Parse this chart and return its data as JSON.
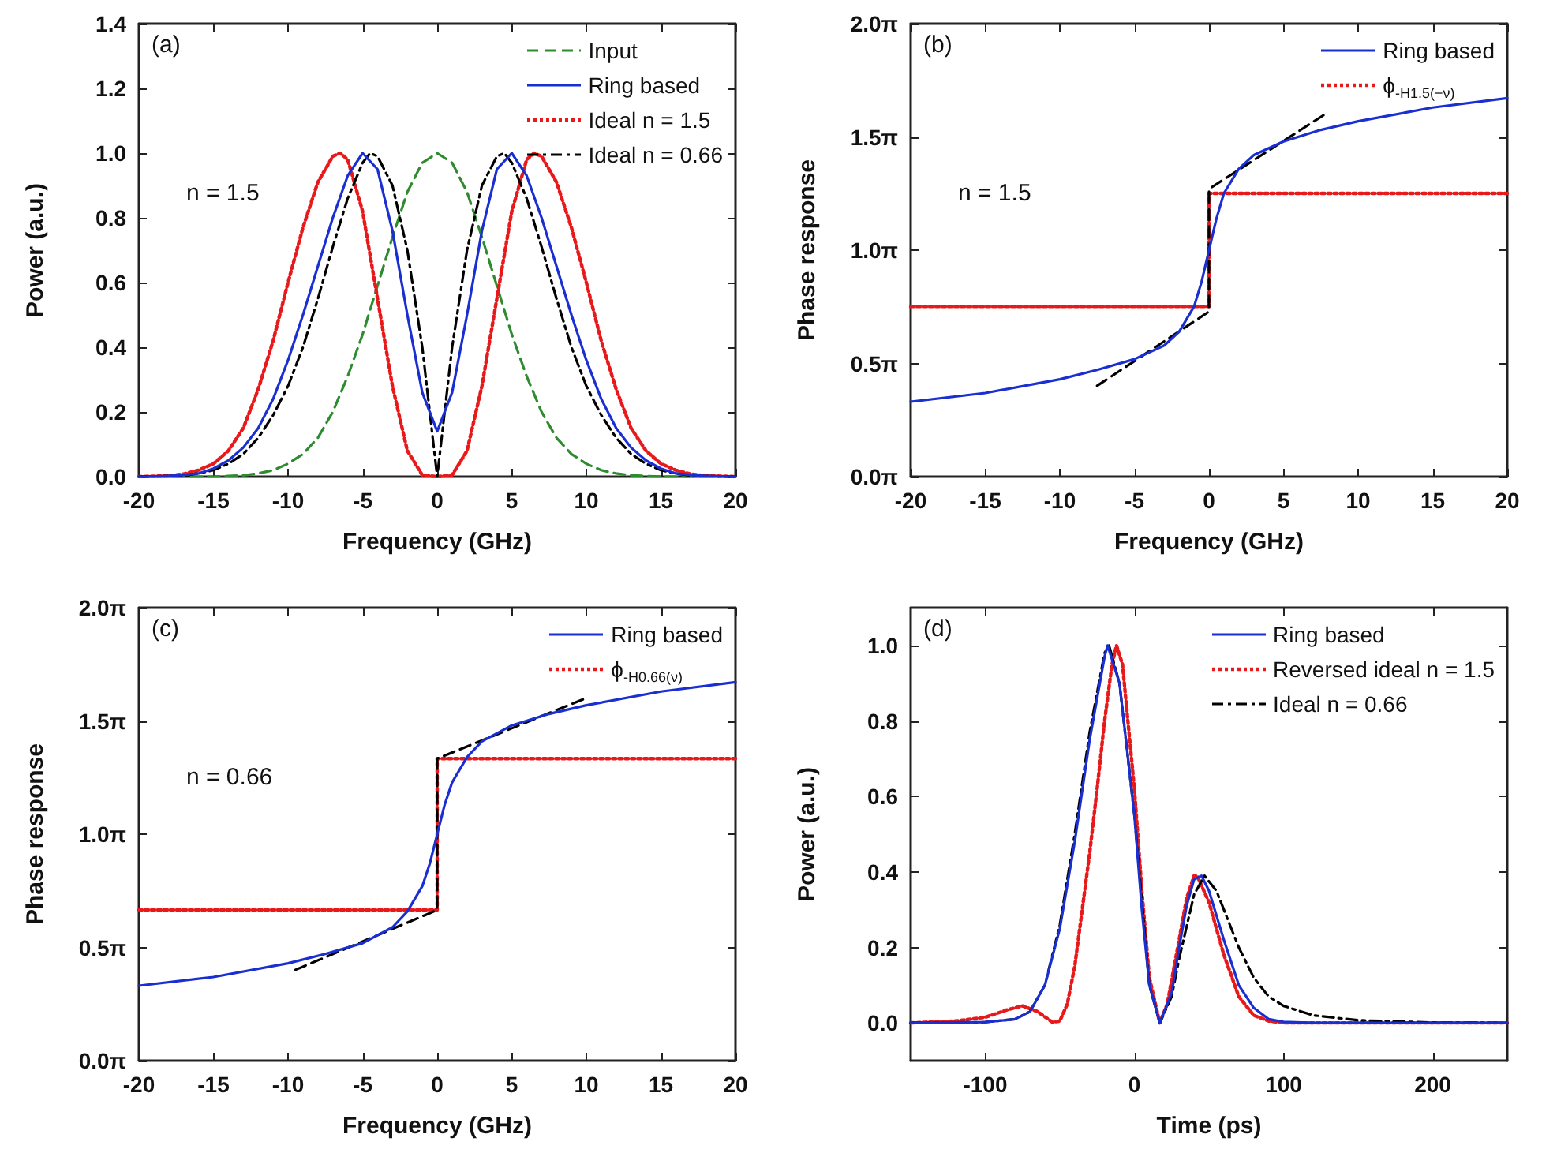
{
  "chart_data": [
    {
      "type": "line",
      "xlabel": "Frequency (GHz)",
      "ylabel": "Power (a.u.)",
      "annotations": [
        "(a)",
        "n = 1.5"
      ],
      "legend": "top right",
      "marker": "none",
      "xlim": [
        -20,
        20
      ],
      "xticks": [
        -20,
        -15,
        -10,
        -5,
        0,
        5,
        10,
        15,
        20
      ],
      "ylim": [
        0,
        1.4
      ],
      "yticks": [
        {
          "value": 0,
          "label": "0.0"
        },
        0.2,
        0.4,
        0.6,
        0.8,
        {
          "value": 1,
          "label": "1.0"
        },
        1.2,
        1.4
      ],
      "series": [
        {
          "name": "Input",
          "color": "#2e8b2e",
          "line_style": "dashed",
          "x": [
            -20,
            -15,
            -14,
            -13,
            -12,
            -11,
            -10,
            -9,
            -8,
            -7,
            -6,
            -5,
            -4,
            -3,
            -2,
            -1,
            0,
            1,
            2,
            3,
            4,
            5,
            6,
            7,
            8,
            9,
            10,
            11,
            12,
            13,
            14,
            15,
            20
          ],
          "values": [
            0,
            0,
            0.002,
            0.004,
            0.01,
            0.02,
            0.04,
            0.07,
            0.12,
            0.2,
            0.31,
            0.44,
            0.59,
            0.74,
            0.88,
            0.97,
            1,
            0.97,
            0.88,
            0.74,
            0.59,
            0.44,
            0.31,
            0.2,
            0.12,
            0.07,
            0.04,
            0.02,
            0.01,
            0.004,
            0.002,
            0,
            0
          ]
        },
        {
          "name": "Ring based",
          "color": "#1a2fd1",
          "line_style": "solid",
          "x": [
            -20,
            -18,
            -17,
            -16,
            -15,
            -14,
            -13,
            -12,
            -11,
            -10,
            -9,
            -8,
            -7,
            -6,
            -5,
            -4,
            -3,
            -2,
            -1,
            0,
            1,
            2,
            3,
            4,
            5,
            6,
            7,
            8,
            9,
            10,
            11,
            12,
            13,
            14,
            15,
            16,
            17,
            18,
            20
          ],
          "values": [
            0,
            0.002,
            0.005,
            0.01,
            0.025,
            0.05,
            0.09,
            0.15,
            0.24,
            0.36,
            0.5,
            0.65,
            0.8,
            0.93,
            1.0,
            0.95,
            0.76,
            0.5,
            0.26,
            0.14,
            0.26,
            0.5,
            0.76,
            0.95,
            1.0,
            0.93,
            0.8,
            0.65,
            0.5,
            0.36,
            0.24,
            0.15,
            0.09,
            0.05,
            0.025,
            0.01,
            0.005,
            0.002,
            0
          ]
        },
        {
          "name": "Ideal n = 1.5",
          "color": "#e8191a",
          "line_style": "dotted",
          "x": [
            -20,
            -18,
            -17,
            -16,
            -15,
            -14,
            -13,
            -12,
            -11,
            -10,
            -9,
            -8,
            -7,
            -6.5,
            -6,
            -5,
            -4,
            -3,
            -2,
            -1,
            0,
            1,
            2,
            3,
            4,
            5,
            6,
            6.5,
            7,
            8,
            9,
            10,
            11,
            12,
            13,
            14,
            15,
            16,
            17,
            18,
            20
          ],
          "values": [
            0,
            0.003,
            0.008,
            0.02,
            0.04,
            0.08,
            0.15,
            0.27,
            0.42,
            0.6,
            0.77,
            0.91,
            0.99,
            1.0,
            0.98,
            0.82,
            0.55,
            0.28,
            0.08,
            0.005,
            0,
            0.005,
            0.08,
            0.28,
            0.55,
            0.82,
            0.98,
            1.0,
            0.99,
            0.91,
            0.77,
            0.6,
            0.42,
            0.27,
            0.15,
            0.08,
            0.04,
            0.02,
            0.008,
            0.003,
            0
          ]
        },
        {
          "name": "Ideal n = 0.66",
          "color": "#000000",
          "line_style": "dashdot",
          "x": [
            -20,
            -17,
            -16,
            -15,
            -14,
            -13,
            -12,
            -11,
            -10,
            -9,
            -8,
            -7,
            -6,
            -5,
            -4.5,
            -4,
            -3,
            -2,
            -1,
            -0.5,
            0,
            0.5,
            1,
            2,
            3,
            4,
            4.5,
            5,
            6,
            7,
            8,
            9,
            10,
            11,
            12,
            13,
            14,
            15,
            16,
            17,
            20
          ],
          "values": [
            0,
            0.003,
            0.01,
            0.02,
            0.04,
            0.07,
            0.12,
            0.19,
            0.28,
            0.4,
            0.55,
            0.71,
            0.86,
            0.97,
            1.0,
            0.99,
            0.9,
            0.7,
            0.4,
            0.2,
            0,
            0.2,
            0.4,
            0.7,
            0.9,
            0.99,
            1.0,
            0.97,
            0.86,
            0.71,
            0.55,
            0.4,
            0.28,
            0.19,
            0.12,
            0.07,
            0.04,
            0.02,
            0.01,
            0.003,
            0
          ]
        }
      ]
    },
    {
      "type": "line",
      "xlabel": "Frequency (GHz)",
      "ylabel": "Phase response",
      "annotations": [
        "(b)",
        "n = 1.5"
      ],
      "legend": "top right",
      "marker": "none",
      "xlim": [
        -20,
        20
      ],
      "xticks": [
        -20,
        -15,
        -10,
        -5,
        0,
        5,
        10,
        15,
        20
      ],
      "ylim": [
        0,
        6.2832
      ],
      "yticks": [
        {
          "value": 0,
          "label": "0.0π"
        },
        {
          "value": 1.5708,
          "label": "0.5π"
        },
        {
          "value": 3.1416,
          "label": "1.0π"
        },
        {
          "value": 4.7124,
          "label": "1.5π"
        },
        {
          "value": 6.2832,
          "label": "2.0π"
        }
      ],
      "series": [
        {
          "name": "Ring based",
          "color": "#1a2fd1",
          "line_style": "solid",
          "x": [
            -20,
            -15,
            -10,
            -7.5,
            -5,
            -3,
            -2,
            -1,
            -0.5,
            0,
            0.5,
            1,
            2,
            3,
            5,
            7.5,
            10,
            15,
            20
          ],
          "values": [
            1.04,
            1.16,
            1.35,
            1.48,
            1.63,
            1.82,
            2.01,
            2.36,
            2.7,
            3.14,
            3.58,
            3.93,
            4.27,
            4.46,
            4.65,
            4.81,
            4.93,
            5.12,
            5.25
          ]
        },
        {
          "name": "ϕ$_{-H1.5(−ν)}$",
          "color": "#e8191a",
          "line_style": "dotted",
          "x": [
            -20,
            0,
            0,
            20
          ],
          "values": [
            2.36,
            2.36,
            3.93,
            3.93
          ]
        },
        {
          "color": "#000000",
          "line_style": "dashed",
          "x": [
            -7.5,
            0,
            0,
            7.8
          ],
          "values": [
            1.26,
            2.29,
            3.99,
            5.03
          ]
        }
      ]
    },
    {
      "type": "line",
      "xlabel": "Frequency (GHz)",
      "ylabel": "Phase response",
      "annotations": [
        "(c)",
        "n = 0.66"
      ],
      "legend": "top right",
      "marker": "none",
      "xlim": [
        -20,
        20
      ],
      "xticks": [
        -20,
        -15,
        -10,
        -5,
        0,
        5,
        10,
        15,
        20
      ],
      "ylim": [
        0,
        6.2832
      ],
      "yticks": [
        {
          "value": 0,
          "label": "0.0π"
        },
        {
          "value": 1.5708,
          "label": "0.5π"
        },
        {
          "value": 3.1416,
          "label": "1.0π"
        },
        {
          "value": 4.7124,
          "label": "1.5π"
        },
        {
          "value": 6.2832,
          "label": "2.0π"
        }
      ],
      "series": [
        {
          "name": "Ring based",
          "color": "#1a2fd1",
          "line_style": "solid",
          "x": [
            -20,
            -15,
            -10,
            -7.5,
            -5,
            -3,
            -2,
            -1,
            -0.5,
            0,
            0.5,
            1,
            2,
            3,
            5,
            7.5,
            10,
            15,
            20
          ],
          "values": [
            1.04,
            1.16,
            1.35,
            1.48,
            1.63,
            1.85,
            2.07,
            2.42,
            2.73,
            3.14,
            3.55,
            3.86,
            4.21,
            4.43,
            4.65,
            4.81,
            4.93,
            5.12,
            5.25
          ]
        },
        {
          "name": "ϕ$_{-H0.66(ν)}$",
          "color": "#e8191a",
          "line_style": "dotted",
          "x": [
            -20,
            0,
            0,
            20
          ],
          "values": [
            2.09,
            2.09,
            4.19,
            4.19
          ]
        },
        {
          "color": "#000000",
          "line_style": "dashed",
          "x": [
            -9.5,
            0,
            0,
            10
          ],
          "values": [
            1.26,
            2.09,
            4.19,
            5.03
          ]
        }
      ]
    },
    {
      "type": "line",
      "xlabel": "Time (ps)",
      "ylabel": "Power (a.u.)",
      "annotations": [
        "(d)"
      ],
      "legend": "top right",
      "marker": "none",
      "xlim": [
        -150,
        250
      ],
      "xticks": [
        -100,
        0,
        100,
        200
      ],
      "ylim": [
        -0.1,
        1.1
      ],
      "yticks": [
        {
          "value": 0,
          "label": "0.0"
        },
        0.2,
        0.4,
        0.6,
        0.8,
        {
          "value": 1,
          "label": "1.0"
        }
      ],
      "series": [
        {
          "name": "Ring based",
          "color": "#1a2fd1",
          "line_style": "solid",
          "x": [
            -150,
            -100,
            -80,
            -70,
            -60,
            -50,
            -40,
            -30,
            -20,
            -18,
            -10,
            0,
            5,
            10,
            17,
            25,
            30,
            35,
            40,
            45,
            50,
            60,
            70,
            80,
            90,
            100,
            120,
            250
          ],
          "values": [
            0,
            0.002,
            0.01,
            0.03,
            0.1,
            0.25,
            0.48,
            0.75,
            0.97,
            1.0,
            0.9,
            0.55,
            0.3,
            0.1,
            0,
            0.08,
            0.2,
            0.31,
            0.38,
            0.39,
            0.35,
            0.22,
            0.1,
            0.04,
            0.01,
            0.003,
            0,
            0
          ]
        },
        {
          "name": "Reversed ideal n = 1.5",
          "color": "#e8191a",
          "line_style": "dotted",
          "x": [
            -150,
            -120,
            -100,
            -85,
            -75,
            -65,
            -55,
            -50,
            -45,
            -40,
            -35,
            -30,
            -25,
            -20,
            -15,
            -12,
            -8,
            0,
            5,
            10,
            17,
            22,
            30,
            35,
            40,
            42,
            50,
            60,
            70,
            80,
            90,
            100,
            250
          ],
          "values": [
            0,
            0.005,
            0.015,
            0.035,
            0.045,
            0.03,
            0.002,
            0.005,
            0.05,
            0.15,
            0.3,
            0.45,
            0.62,
            0.8,
            0.95,
            1.0,
            0.95,
            0.62,
            0.35,
            0.12,
            0,
            0.05,
            0.22,
            0.33,
            0.39,
            0.39,
            0.32,
            0.18,
            0.07,
            0.02,
            0.005,
            0,
            0
          ]
        },
        {
          "name": "Ideal n = 0.66",
          "color": "#000000",
          "line_style": "dashdot",
          "x": [
            -150,
            -100,
            -80,
            -70,
            -60,
            -50,
            -40,
            -30,
            -20,
            -17,
            -10,
            0,
            10,
            17,
            25,
            30,
            40,
            47,
            55,
            60,
            70,
            80,
            90,
            100,
            120,
            150,
            200,
            250
          ],
          "values": [
            0,
            0.002,
            0.01,
            0.03,
            0.1,
            0.26,
            0.5,
            0.77,
            0.98,
            1.0,
            0.9,
            0.55,
            0.1,
            0,
            0.07,
            0.17,
            0.34,
            0.39,
            0.35,
            0.3,
            0.2,
            0.12,
            0.07,
            0.045,
            0.02,
            0.007,
            0.001,
            0
          ]
        }
      ]
    }
  ]
}
